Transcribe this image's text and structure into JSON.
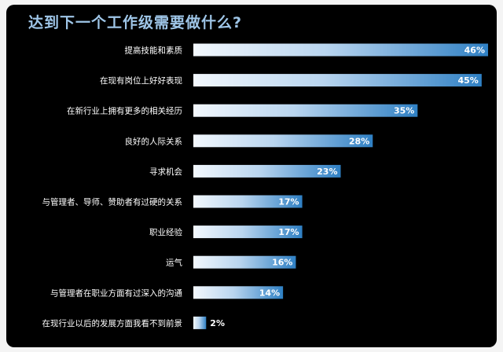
{
  "title": "达到下一个工作级需要做什么?",
  "colors": {
    "background": "#000000",
    "title": "#9fc6e8",
    "bar_light": "#e8f1fb",
    "bar_dark": "#2c7ec2"
  },
  "chart_data": {
    "type": "bar",
    "orientation": "horizontal",
    "title": "达到下一个工作级需要做什么?",
    "categories": [
      "提高技能和素质",
      "在现有岗位上好好表现",
      "在新行业上拥有更多的相关经历",
      "良好的人际关系",
      "寻求机会",
      "与管理者、导师、赞助者有过硬的关系",
      "职业经验",
      "运气",
      "与管理者在职业方面有过深入的沟通",
      "在现行业以后的发展方面我看不到前景"
    ],
    "values": [
      46,
      45,
      35,
      28,
      23,
      17,
      17,
      16,
      14,
      2
    ],
    "value_labels": [
      "46%",
      "45%",
      "35%",
      "28%",
      "23%",
      "17%",
      "17%",
      "16%",
      "14%",
      "2%"
    ],
    "xlim": [
      0,
      46
    ],
    "grid": false,
    "legend": "none"
  }
}
